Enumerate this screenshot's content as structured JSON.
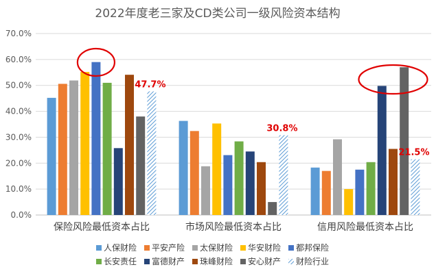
{
  "chart_data": {
    "type": "bar",
    "title": "2022年度老三家及CD类公司一级风险资本结构",
    "categories": [
      "保险风险最低资本占比",
      "市场风险最低资本占比",
      "信用风险最低资本占比"
    ],
    "ylim": [
      0,
      70
    ],
    "yticks": [
      "0.0%",
      "10.0%",
      "20.0%",
      "30.0%",
      "40.0%",
      "50.0%",
      "60.0%",
      "70.0%"
    ],
    "grid": true,
    "legend_position": "bottom",
    "series": [
      {
        "name": "人保财险",
        "color": "#5B9BD5",
        "values": [
          45.2,
          36.3,
          18.3
        ]
      },
      {
        "name": "平安产险",
        "color": "#ED7D31",
        "values": [
          50.6,
          32.4,
          17.0
        ]
      },
      {
        "name": "太保财险",
        "color": "#A5A5A5",
        "values": [
          51.9,
          18.8,
          29.2
        ]
      },
      {
        "name": "华安财险",
        "color": "#FFC000",
        "values": [
          55.2,
          35.3,
          10.0
        ]
      },
      {
        "name": "都邦保险",
        "color": "#4472C4",
        "values": [
          59.0,
          23.1,
          17.5
        ]
      },
      {
        "name": "长安责任",
        "color": "#70AD47",
        "values": [
          51.0,
          28.4,
          20.4
        ]
      },
      {
        "name": "富德财产",
        "color": "#264478",
        "values": [
          25.8,
          24.5,
          49.8
        ]
      },
      {
        "name": "珠峰财险",
        "color": "#9E480E",
        "values": [
          54.1,
          20.4,
          25.5
        ]
      },
      {
        "name": "安心财产",
        "color": "#636363",
        "values": [
          38.0,
          5.0,
          57.0
        ]
      },
      {
        "name": "财险行业",
        "color": "#5B9BD5",
        "pattern": "hatch",
        "values": [
          47.7,
          30.8,
          21.5
        ]
      }
    ],
    "annotations": [
      "47.7%",
      "30.8%",
      "21.5%"
    ],
    "annotation_color": "#E00000",
    "highlight_color": "#E00000"
  }
}
